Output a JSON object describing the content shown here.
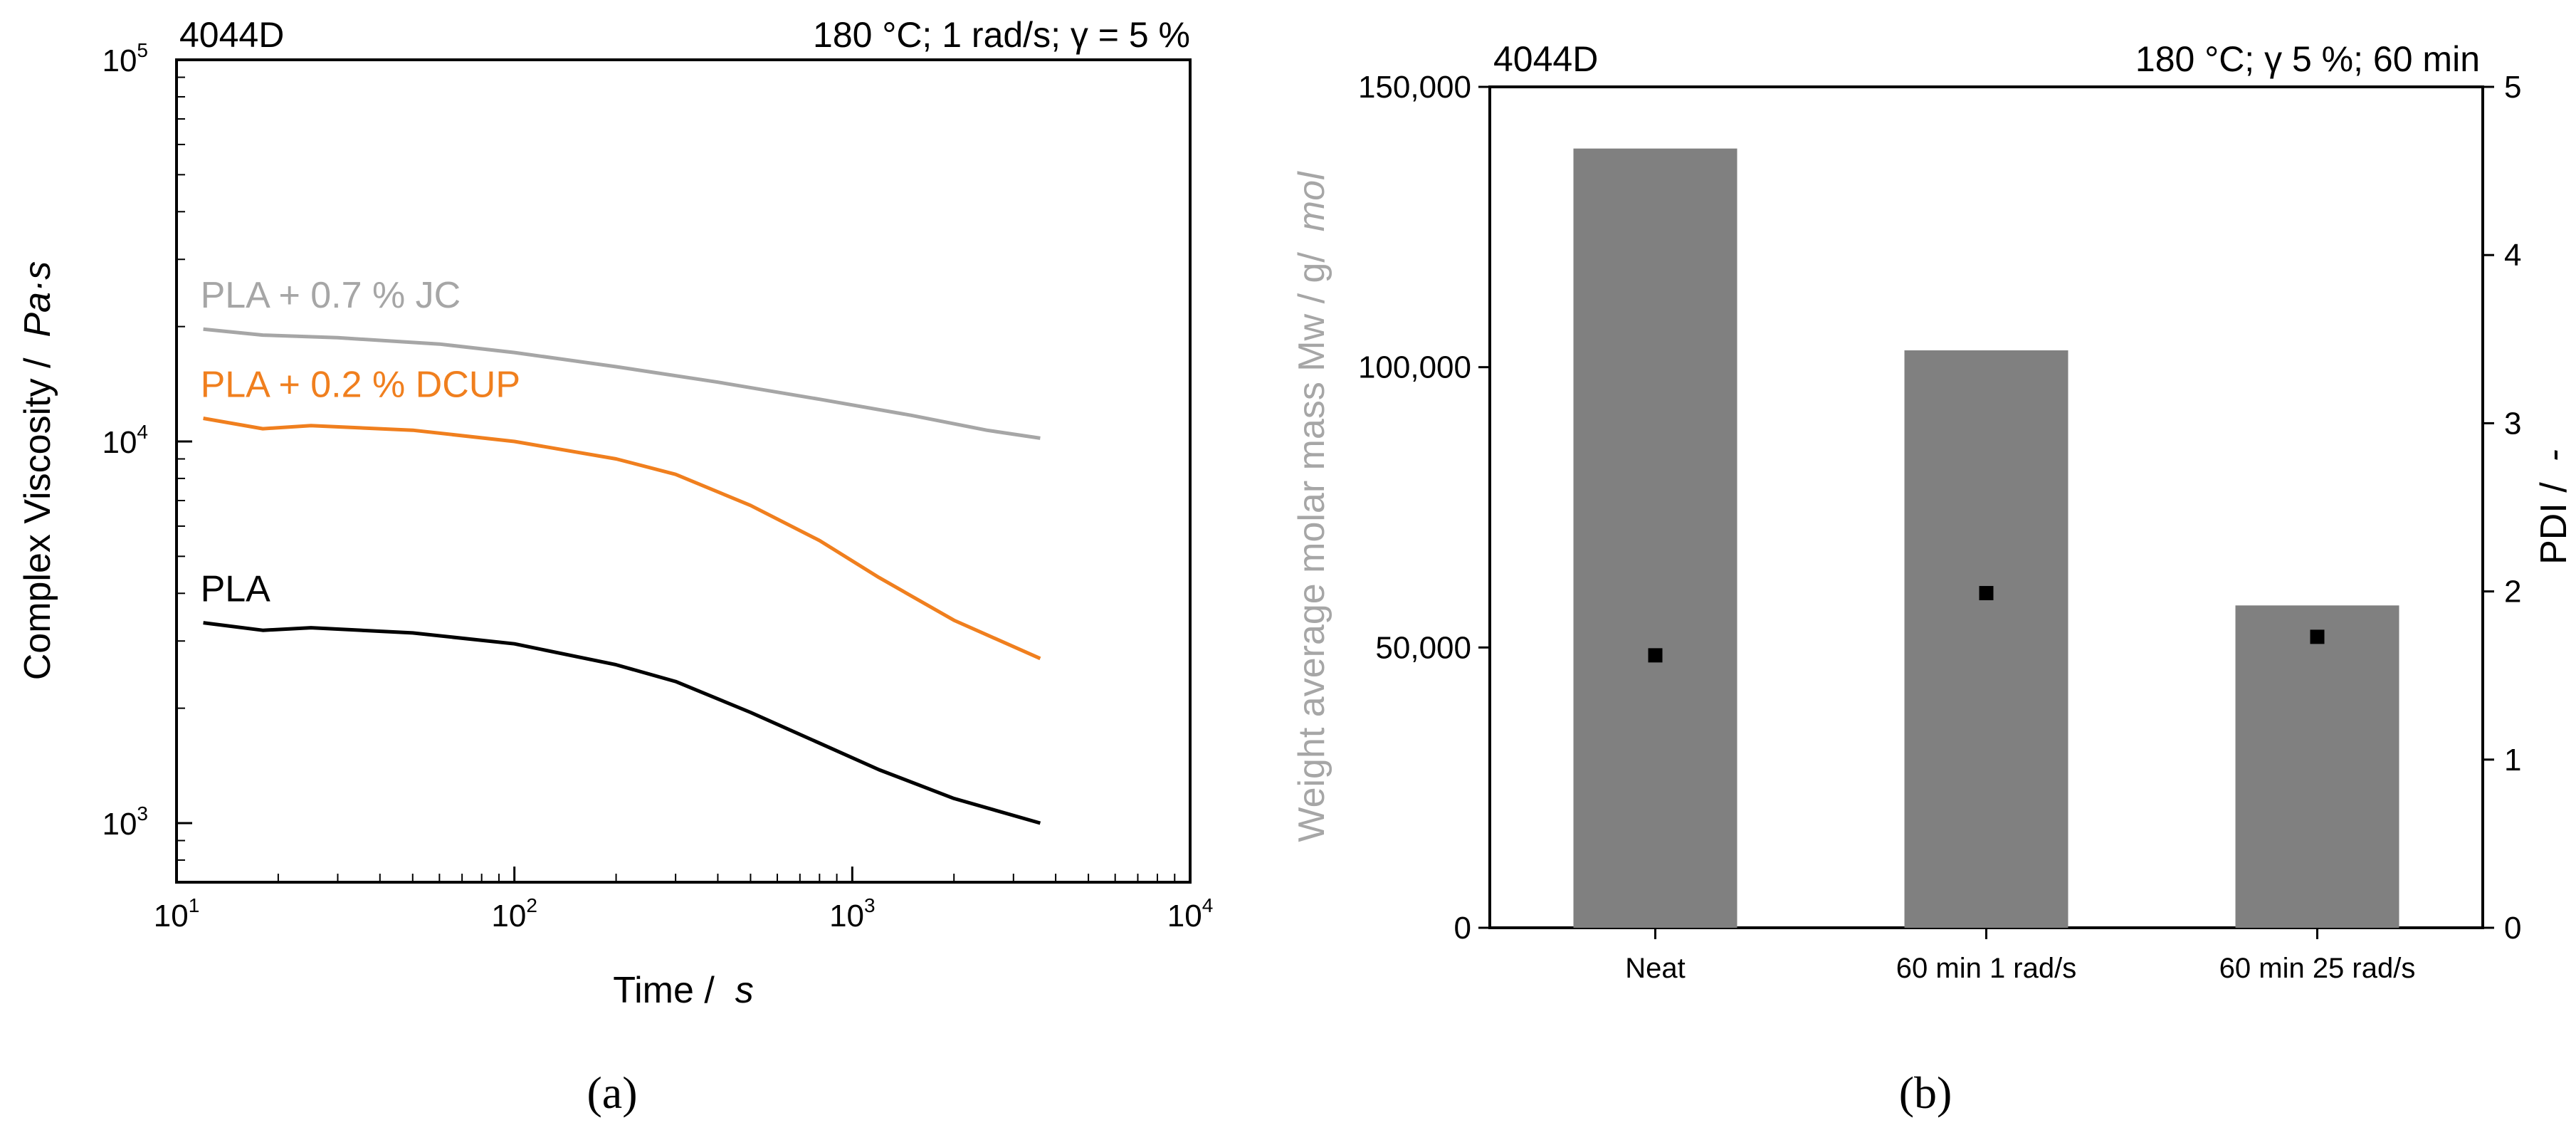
{
  "chart_data": [
    {
      "type": "line",
      "panel_label": "(a)",
      "title_left": "4044D",
      "title_right": "180 °C; 1 rad/s; γ = 5 %",
      "xlabel": "Time  /  s",
      "ylabel": "Complex Viscosity  /  Pa·s",
      "x_scale": "log",
      "y_scale": "log",
      "xlim": [
        10,
        10000
      ],
      "ylim": [
        700,
        100000
      ],
      "x_ticks": [
        {
          "value": 10,
          "base": "10",
          "exp": "1"
        },
        {
          "value": 100,
          "base": "10",
          "exp": "2"
        },
        {
          "value": 1000,
          "base": "10",
          "exp": "3"
        },
        {
          "value": 10000,
          "base": "10",
          "exp": "4"
        }
      ],
      "y_ticks": [
        {
          "value": 1000,
          "base": "10",
          "exp": "3"
        },
        {
          "value": 10000,
          "base": "10",
          "exp": "4"
        },
        {
          "value": 100000,
          "base": "10",
          "exp": "5"
        }
      ],
      "grid": false,
      "series": [
        {
          "name": "PLA + 0.7 % JC",
          "color": "#a6a6a6",
          "points": [
            [
              12,
              19700
            ],
            [
              18,
              19000
            ],
            [
              30,
              18700
            ],
            [
              60,
              18000
            ],
            [
              100,
              17100
            ],
            [
              200,
              15700
            ],
            [
              400,
              14300
            ],
            [
              800,
              12900
            ],
            [
              1500,
              11700
            ],
            [
              2500,
              10700
            ],
            [
              3600,
              10200
            ]
          ]
        },
        {
          "name": "PLA + 0.2 % DCUP",
          "color": "#f07f1e",
          "points": [
            [
              12,
              11500
            ],
            [
              18,
              10800
            ],
            [
              25,
              11000
            ],
            [
              50,
              10700
            ],
            [
              100,
              10000
            ],
            [
              200,
              9000
            ],
            [
              300,
              8200
            ],
            [
              500,
              6800
            ],
            [
              800,
              5500
            ],
            [
              1200,
              4400
            ],
            [
              2000,
              3400
            ],
            [
              3600,
              2700
            ]
          ]
        },
        {
          "name": "PLA",
          "color": "#000000",
          "points": [
            [
              12,
              3350
            ],
            [
              18,
              3200
            ],
            [
              25,
              3250
            ],
            [
              50,
              3150
            ],
            [
              100,
              2950
            ],
            [
              200,
              2600
            ],
            [
              300,
              2350
            ],
            [
              500,
              1950
            ],
            [
              800,
              1620
            ],
            [
              1200,
              1380
            ],
            [
              2000,
              1160
            ],
            [
              3600,
              1000
            ]
          ]
        }
      ]
    },
    {
      "type": "bar",
      "panel_label": "(b)",
      "title_left": "4044D",
      "title_right": "180 °C; γ 5 %; 60 min",
      "categories": [
        "Neat",
        "60 min 1 rad/s",
        "60 min 25 rad/s"
      ],
      "ylabel": "Weight average molar mass Mw  /  g/mol",
      "y2label": "PDI  /  -",
      "ylim": [
        0,
        150000
      ],
      "y_ticks": [
        "0",
        "50,000",
        "100,000",
        "150,000"
      ],
      "y2lim": [
        0,
        5
      ],
      "y2_ticks": [
        "0",
        "1",
        "2",
        "3",
        "4",
        "5"
      ],
      "grid": false,
      "series": [
        {
          "axis": "left",
          "kind": "bar",
          "color": "#808080",
          "values": [
            139000,
            103000,
            57500
          ]
        },
        {
          "axis": "right",
          "kind": "scatter",
          "color": "#000000",
          "values": [
            1.62,
            1.99,
            1.73
          ]
        }
      ]
    }
  ]
}
